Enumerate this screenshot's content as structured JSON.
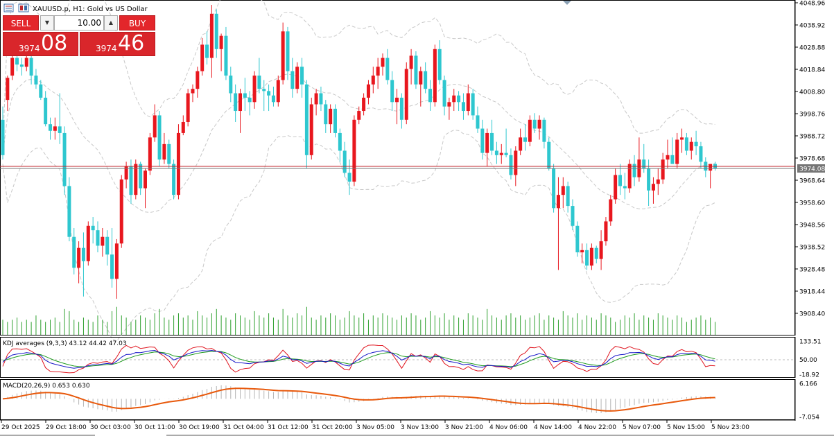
{
  "header": {
    "title": "XAUUSD.p, H1:  Gold vs US Dollar"
  },
  "trade_panel": {
    "sell_label": "SELL",
    "buy_label": "BUY",
    "volume": "10.00",
    "bid_small": "3974",
    "bid_big": "08",
    "ask_small": "3974",
    "ask_big": "46"
  },
  "price_axis": {
    "ticks": [
      "4048.96",
      "4038.92",
      "4028.88",
      "4018.84",
      "4008.80",
      "3998.76",
      "3988.72",
      "3978.68",
      "3968.64",
      "3958.60",
      "3948.56",
      "3938.52",
      "3928.48",
      "3918.44",
      "3908.40"
    ],
    "current_price_label": "3974.08"
  },
  "kdj_panel": {
    "title": "KDJ averages (9,3,3) 43.12 44.42 47.03",
    "ticks": [
      "133.51",
      "50.00",
      "-18.92"
    ]
  },
  "macd_panel": {
    "title": "MACD(20,26,9) 0.653 0.630",
    "ticks": [
      "6.166",
      "-7.054"
    ]
  },
  "time_axis": {
    "labels": [
      "29 Oct 2025",
      "29 Oct 18:00",
      "30 Oct 03:00",
      "30 Oct 11:00",
      "30 Oct 19:00",
      "31 Oct 04:00",
      "31 Oct 12:00",
      "31 Oct 20:00",
      "3 Nov 05:00",
      "3 Nov 13:00",
      "3 Nov 21:00",
      "4 Nov 06:00",
      "4 Nov 14:00",
      "4 Nov 22:00",
      "5 Nov 07:00",
      "5 Nov 15:00",
      "5 Nov 23:00"
    ]
  },
  "colors": {
    "bull": "#e8171e",
    "bear": "#2ec7cf",
    "volume": "#2ea02e",
    "kdj_k": "#1414c8",
    "kdj_d": "#1e9b1e",
    "kdj_j": "#e0141e",
    "macd_signal": "#e8590c",
    "bands": "#c8c8c8"
  },
  "chart_data": {
    "type": "candlestick",
    "symbol": "XAUUSD.p",
    "timeframe": "H1",
    "ylim": [
      3902,
      4050
    ],
    "candles": [
      {
        "o": 3996,
        "h": 4002,
        "l": 3978,
        "c": 3980
      },
      {
        "o": 4005,
        "h": 4016,
        "l": 4000,
        "c": 4015
      },
      {
        "o": 4016,
        "h": 4026,
        "l": 4014,
        "c": 4024
      },
      {
        "o": 4024,
        "h": 4030,
        "l": 4018,
        "c": 4021
      },
      {
        "o": 4021,
        "h": 4024,
        "l": 4016,
        "c": 4020
      },
      {
        "o": 4020,
        "h": 4026,
        "l": 4018,
        "c": 4024
      },
      {
        "o": 4024,
        "h": 4026,
        "l": 4012,
        "c": 4016
      },
      {
        "o": 4016,
        "h": 4019,
        "l": 4010,
        "c": 4012
      },
      {
        "o": 4012,
        "h": 4014,
        "l": 4005,
        "c": 4006
      },
      {
        "o": 4006,
        "h": 4009,
        "l": 3993,
        "c": 3994
      },
      {
        "o": 3994,
        "h": 3997,
        "l": 3987,
        "c": 3991
      },
      {
        "o": 3991,
        "h": 3997,
        "l": 3987,
        "c": 3993
      },
      {
        "o": 3993,
        "h": 4008,
        "l": 3985,
        "c": 3990
      },
      {
        "o": 3990,
        "h": 3993,
        "l": 3962,
        "c": 3966
      },
      {
        "o": 3966,
        "h": 3970,
        "l": 3941,
        "c": 3943
      },
      {
        "o": 3943,
        "h": 3947,
        "l": 3926,
        "c": 3929
      },
      {
        "o": 3929,
        "h": 3941,
        "l": 3922,
        "c": 3938
      },
      {
        "o": 3938,
        "h": 3945,
        "l": 3916,
        "c": 3932
      },
      {
        "o": 3932,
        "h": 3950,
        "l": 3930,
        "c": 3948
      },
      {
        "o": 3948,
        "h": 3952,
        "l": 3940,
        "c": 3946
      },
      {
        "o": 3946,
        "h": 3950,
        "l": 3936,
        "c": 3939
      },
      {
        "o": 3939,
        "h": 3947,
        "l": 3934,
        "c": 3943
      },
      {
        "o": 3943,
        "h": 3946,
        "l": 3930,
        "c": 3935
      },
      {
        "o": 3935,
        "h": 3947,
        "l": 3920,
        "c": 3924
      },
      {
        "o": 3924,
        "h": 3942,
        "l": 3915,
        "c": 3940
      },
      {
        "o": 3940,
        "h": 3971,
        "l": 3938,
        "c": 3969
      },
      {
        "o": 3969,
        "h": 3977,
        "l": 3965,
        "c": 3975
      },
      {
        "o": 3975,
        "h": 3978,
        "l": 3958,
        "c": 3962
      },
      {
        "o": 3962,
        "h": 3978,
        "l": 3960,
        "c": 3976
      },
      {
        "o": 3976,
        "h": 3977,
        "l": 3962,
        "c": 3965
      },
      {
        "o": 3965,
        "h": 3974,
        "l": 3956,
        "c": 3973
      },
      {
        "o": 3973,
        "h": 3990,
        "l": 3971,
        "c": 3988
      },
      {
        "o": 3988,
        "h": 4003,
        "l": 3986,
        "c": 3998
      },
      {
        "o": 3998,
        "h": 4000,
        "l": 3975,
        "c": 3978
      },
      {
        "o": 3978,
        "h": 3990,
        "l": 3976,
        "c": 3985
      },
      {
        "o": 3985,
        "h": 3987,
        "l": 3974,
        "c": 3976
      },
      {
        "o": 3976,
        "h": 3978,
        "l": 3960,
        "c": 3962
      },
      {
        "o": 3962,
        "h": 3994,
        "l": 3960,
        "c": 3990
      },
      {
        "o": 3990,
        "h": 3998,
        "l": 3989,
        "c": 3995
      },
      {
        "o": 3995,
        "h": 4010,
        "l": 3993,
        "c": 4008
      },
      {
        "o": 4008,
        "h": 4012,
        "l": 4004,
        "c": 4010
      },
      {
        "o": 4010,
        "h": 4020,
        "l": 4006,
        "c": 4018
      },
      {
        "o": 4018,
        "h": 4033,
        "l": 4016,
        "c": 4030
      },
      {
        "o": 4030,
        "h": 4036,
        "l": 4021,
        "c": 4024
      },
      {
        "o": 4024,
        "h": 4048,
        "l": 4015,
        "c": 4044
      },
      {
        "o": 4044,
        "h": 4046,
        "l": 4024,
        "c": 4028
      },
      {
        "o": 4028,
        "h": 4035,
        "l": 4018,
        "c": 4034
      },
      {
        "o": 4034,
        "h": 4038,
        "l": 4014,
        "c": 4016
      },
      {
        "o": 4016,
        "h": 4020,
        "l": 4004,
        "c": 4008
      },
      {
        "o": 4008,
        "h": 4012,
        "l": 3995,
        "c": 4000
      },
      {
        "o": 4000,
        "h": 4010,
        "l": 3990,
        "c": 4008
      },
      {
        "o": 4008,
        "h": 4015,
        "l": 4000,
        "c": 4006
      },
      {
        "o": 4006,
        "h": 4009,
        "l": 3998,
        "c": 4004
      },
      {
        "o": 4004,
        "h": 4018,
        "l": 4001,
        "c": 4016
      },
      {
        "o": 4016,
        "h": 4024,
        "l": 4008,
        "c": 4010
      },
      {
        "o": 4010,
        "h": 4014,
        "l": 4000,
        "c": 4009
      },
      {
        "o": 4009,
        "h": 4012,
        "l": 4000,
        "c": 4007
      },
      {
        "o": 4007,
        "h": 4011,
        "l": 4002,
        "c": 4004
      },
      {
        "o": 4004,
        "h": 4016,
        "l": 4002,
        "c": 4014
      },
      {
        "o": 4014,
        "h": 4040,
        "l": 4012,
        "c": 4036
      },
      {
        "o": 4036,
        "h": 4038,
        "l": 4014,
        "c": 4018
      },
      {
        "o": 4018,
        "h": 4024,
        "l": 4006,
        "c": 4010
      },
      {
        "o": 4010,
        "h": 4022,
        "l": 4008,
        "c": 4020
      },
      {
        "o": 4020,
        "h": 4024,
        "l": 4006,
        "c": 4012
      },
      {
        "o": 4012,
        "h": 4014,
        "l": 3974,
        "c": 3980
      },
      {
        "o": 3980,
        "h": 4006,
        "l": 3978,
        "c": 4003
      },
      {
        "o": 4003,
        "h": 4010,
        "l": 3998,
        "c": 4008
      },
      {
        "o": 4008,
        "h": 4011,
        "l": 4000,
        "c": 4003
      },
      {
        "o": 4003,
        "h": 4005,
        "l": 3990,
        "c": 3994
      },
      {
        "o": 3994,
        "h": 4003,
        "l": 3990,
        "c": 4001
      },
      {
        "o": 4001,
        "h": 4003,
        "l": 3988,
        "c": 3990
      },
      {
        "o": 3990,
        "h": 3992,
        "l": 3977,
        "c": 3982
      },
      {
        "o": 3982,
        "h": 3986,
        "l": 3970,
        "c": 3972
      },
      {
        "o": 3972,
        "h": 3978,
        "l": 3962,
        "c": 3968
      },
      {
        "o": 3968,
        "h": 3998,
        "l": 3966,
        "c": 3996
      },
      {
        "o": 3996,
        "h": 4002,
        "l": 3994,
        "c": 4000
      },
      {
        "o": 4000,
        "h": 4008,
        "l": 3998,
        "c": 4006
      },
      {
        "o": 4006,
        "h": 4014,
        "l": 4003,
        "c": 4012
      },
      {
        "o": 4012,
        "h": 4020,
        "l": 4008,
        "c": 4016
      },
      {
        "o": 4016,
        "h": 4024,
        "l": 4010,
        "c": 4020
      },
      {
        "o": 4020,
        "h": 4026,
        "l": 4016,
        "c": 4024
      },
      {
        "o": 4024,
        "h": 4028,
        "l": 4012,
        "c": 4014
      },
      {
        "o": 4014,
        "h": 4018,
        "l": 4000,
        "c": 4004
      },
      {
        "o": 4004,
        "h": 4010,
        "l": 3994,
        "c": 4006
      },
      {
        "o": 4006,
        "h": 4008,
        "l": 3992,
        "c": 3996
      },
      {
        "o": 3996,
        "h": 4022,
        "l": 3994,
        "c": 4019
      },
      {
        "o": 4019,
        "h": 4028,
        "l": 4012,
        "c": 4025
      },
      {
        "o": 4025,
        "h": 4027,
        "l": 4010,
        "c": 4012
      },
      {
        "o": 4012,
        "h": 4020,
        "l": 4002,
        "c": 4018
      },
      {
        "o": 4018,
        "h": 4022,
        "l": 4008,
        "c": 4010
      },
      {
        "o": 4010,
        "h": 4014,
        "l": 4000,
        "c": 4004
      },
      {
        "o": 4004,
        "h": 4030,
        "l": 4002,
        "c": 4028
      },
      {
        "o": 4028,
        "h": 4032,
        "l": 4012,
        "c": 4014
      },
      {
        "o": 4014,
        "h": 4016,
        "l": 3998,
        "c": 4002
      },
      {
        "o": 4002,
        "h": 4006,
        "l": 3996,
        "c": 4004
      },
      {
        "o": 4004,
        "h": 4010,
        "l": 4000,
        "c": 4007
      },
      {
        "o": 4007,
        "h": 4009,
        "l": 4000,
        "c": 4004
      },
      {
        "o": 4004,
        "h": 4008,
        "l": 3996,
        "c": 4000
      },
      {
        "o": 4000,
        "h": 4012,
        "l": 3998,
        "c": 4008
      },
      {
        "o": 4008,
        "h": 4010,
        "l": 3996,
        "c": 3998
      },
      {
        "o": 3998,
        "h": 4002,
        "l": 3990,
        "c": 3992
      },
      {
        "o": 3992,
        "h": 3996,
        "l": 3978,
        "c": 3981
      },
      {
        "o": 3981,
        "h": 3992,
        "l": 3975,
        "c": 3990
      },
      {
        "o": 3990,
        "h": 3996,
        "l": 3980,
        "c": 3982
      },
      {
        "o": 3982,
        "h": 3986,
        "l": 3976,
        "c": 3980
      },
      {
        "o": 3980,
        "h": 3985,
        "l": 3976,
        "c": 3981
      },
      {
        "o": 3981,
        "h": 3992,
        "l": 3979,
        "c": 3980
      },
      {
        "o": 3980,
        "h": 3983,
        "l": 3969,
        "c": 3971
      },
      {
        "o": 3971,
        "h": 3984,
        "l": 3966,
        "c": 3982
      },
      {
        "o": 3982,
        "h": 3992,
        "l": 3980,
        "c": 3988
      },
      {
        "o": 3988,
        "h": 3994,
        "l": 3982,
        "c": 3986
      },
      {
        "o": 3986,
        "h": 3998,
        "l": 3984,
        "c": 3996
      },
      {
        "o": 3996,
        "h": 3999,
        "l": 3990,
        "c": 3992
      },
      {
        "o": 3992,
        "h": 3998,
        "l": 3987,
        "c": 3996
      },
      {
        "o": 3996,
        "h": 3997,
        "l": 3983,
        "c": 3986
      },
      {
        "o": 3986,
        "h": 3988,
        "l": 3973,
        "c": 3974
      },
      {
        "o": 3974,
        "h": 3976,
        "l": 3954,
        "c": 3956
      },
      {
        "o": 3956,
        "h": 3970,
        "l": 3928,
        "c": 3962
      },
      {
        "o": 3962,
        "h": 3970,
        "l": 3956,
        "c": 3966
      },
      {
        "o": 3966,
        "h": 3968,
        "l": 3954,
        "c": 3957
      },
      {
        "o": 3957,
        "h": 3960,
        "l": 3946,
        "c": 3948
      },
      {
        "o": 3948,
        "h": 3950,
        "l": 3934,
        "c": 3936
      },
      {
        "o": 3936,
        "h": 3940,
        "l": 3931,
        "c": 3937
      },
      {
        "o": 3937,
        "h": 3940,
        "l": 3928,
        "c": 3930
      },
      {
        "o": 3930,
        "h": 3940,
        "l": 3928,
        "c": 3938
      },
      {
        "o": 3938,
        "h": 3939,
        "l": 3931,
        "c": 3933
      },
      {
        "o": 3933,
        "h": 3946,
        "l": 3928,
        "c": 3941
      },
      {
        "o": 3941,
        "h": 3952,
        "l": 3939,
        "c": 3950
      },
      {
        "o": 3950,
        "h": 3962,
        "l": 3948,
        "c": 3960
      },
      {
        "o": 3960,
        "h": 3974,
        "l": 3958,
        "c": 3971
      },
      {
        "o": 3971,
        "h": 3976,
        "l": 3962,
        "c": 3966
      },
      {
        "o": 3966,
        "h": 3972,
        "l": 3960,
        "c": 3965
      },
      {
        "o": 3965,
        "h": 3978,
        "l": 3963,
        "c": 3976
      },
      {
        "o": 3976,
        "h": 3980,
        "l": 3966,
        "c": 3970
      },
      {
        "o": 3970,
        "h": 3988,
        "l": 3968,
        "c": 3978
      },
      {
        "o": 3978,
        "h": 3985,
        "l": 3972,
        "c": 3974
      },
      {
        "o": 3974,
        "h": 3978,
        "l": 3957,
        "c": 3964
      },
      {
        "o": 3964,
        "h": 3970,
        "l": 3958,
        "c": 3967
      },
      {
        "o": 3967,
        "h": 3974,
        "l": 3962,
        "c": 3969
      },
      {
        "o": 3969,
        "h": 3981,
        "l": 3967,
        "c": 3978
      },
      {
        "o": 3978,
        "h": 3987,
        "l": 3974,
        "c": 3980
      },
      {
        "o": 3980,
        "h": 3988,
        "l": 3976,
        "c": 3976
      },
      {
        "o": 3976,
        "h": 3990,
        "l": 3974,
        "c": 3987
      },
      {
        "o": 3987,
        "h": 3992,
        "l": 3981,
        "c": 3988
      },
      {
        "o": 3988,
        "h": 3990,
        "l": 3980,
        "c": 3982
      },
      {
        "o": 3982,
        "h": 3988,
        "l": 3978,
        "c": 3986
      },
      {
        "o": 3986,
        "h": 3991,
        "l": 3980,
        "c": 3984
      },
      {
        "o": 3984,
        "h": 3986,
        "l": 3974,
        "c": 3977
      },
      {
        "o": 3977,
        "h": 3979,
        "l": 3970,
        "c": 3973
      },
      {
        "o": 3973,
        "h": 3976,
        "l": 3965,
        "c": 3976
      },
      {
        "o": 3976,
        "h": 3977,
        "l": 3973,
        "c": 3974
      }
    ],
    "volume": [
      7,
      6,
      7,
      8,
      6,
      7,
      6,
      9,
      7,
      6,
      7,
      8,
      6,
      12,
      11,
      7,
      6,
      8,
      7,
      6,
      9,
      7,
      6,
      11,
      13,
      9,
      8,
      6,
      7,
      9,
      8,
      7,
      10,
      12,
      8,
      7,
      9,
      10,
      8,
      9,
      7,
      11,
      9,
      8,
      10,
      12,
      9,
      8,
      7,
      10,
      9,
      8,
      7,
      11,
      9,
      8,
      10,
      8,
      7,
      12,
      9,
      8,
      10,
      9,
      13,
      8,
      7,
      9,
      8,
      10,
      9,
      7,
      8,
      11,
      9,
      8,
      10,
      7,
      9,
      8,
      10,
      9,
      8,
      7,
      9,
      8,
      10,
      9,
      7,
      8,
      11,
      9,
      8,
      10,
      7,
      9,
      8,
      7,
      10,
      9,
      8,
      7,
      12,
      9,
      8,
      7,
      9,
      10,
      8,
      9,
      7,
      8,
      9,
      10,
      7,
      9,
      8,
      7,
      11,
      9,
      8,
      10,
      7,
      9,
      8,
      7,
      10,
      9,
      8,
      6,
      7,
      9,
      8,
      10,
      7,
      9,
      8,
      7,
      10,
      9,
      8,
      7,
      9,
      8,
      6,
      7,
      8,
      9,
      7,
      8,
      6,
      7
    ]
  }
}
